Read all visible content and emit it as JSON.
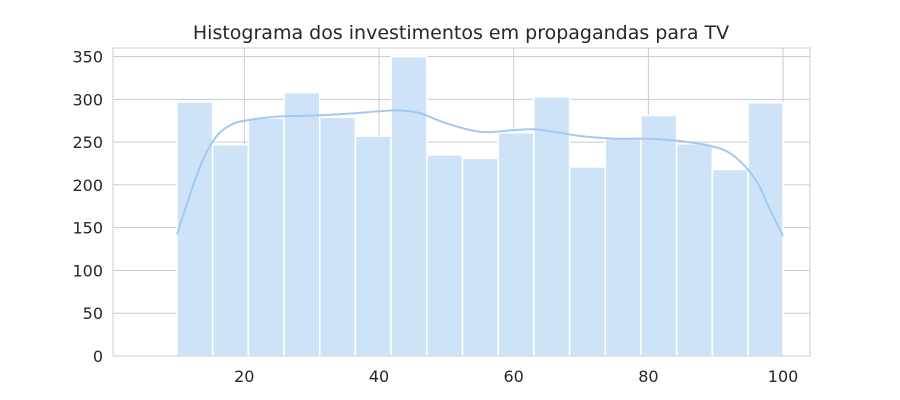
{
  "chart_data": {
    "type": "bar",
    "title": "Histograma dos investimentos em propagandas para TV",
    "xlabel": "",
    "ylabel": "",
    "xlim": [
      0.5,
      104
    ],
    "ylim": [
      0,
      360
    ],
    "x_ticks": [
      20,
      40,
      60,
      80,
      100
    ],
    "y_ticks": [
      0,
      50,
      100,
      150,
      200,
      250,
      300,
      350
    ],
    "grid": true,
    "bar_color": "#cfe3f8",
    "kde_color": "#a1c9f4",
    "bins": [
      {
        "start": 10.0,
        "end": 15.3,
        "count": 297
      },
      {
        "start": 15.3,
        "end": 20.6,
        "count": 247
      },
      {
        "start": 20.6,
        "end": 25.9,
        "count": 278
      },
      {
        "start": 25.9,
        "end": 31.2,
        "count": 308
      },
      {
        "start": 31.2,
        "end": 36.5,
        "count": 279
      },
      {
        "start": 36.5,
        "end": 41.8,
        "count": 257
      },
      {
        "start": 41.8,
        "end": 47.1,
        "count": 350
      },
      {
        "start": 47.1,
        "end": 52.4,
        "count": 235
      },
      {
        "start": 52.4,
        "end": 57.7,
        "count": 231
      },
      {
        "start": 57.7,
        "end": 63.0,
        "count": 261
      },
      {
        "start": 63.0,
        "end": 68.3,
        "count": 303
      },
      {
        "start": 68.3,
        "end": 73.6,
        "count": 221
      },
      {
        "start": 73.6,
        "end": 78.9,
        "count": 254
      },
      {
        "start": 78.9,
        "end": 84.2,
        "count": 281
      },
      {
        "start": 84.2,
        "end": 89.5,
        "count": 248
      },
      {
        "start": 89.5,
        "end": 94.8,
        "count": 218
      },
      {
        "start": 94.8,
        "end": 100.0,
        "count": 296
      }
    ],
    "kde_curve": {
      "x": [
        10,
        12,
        14,
        16,
        18,
        20,
        25,
        30,
        35,
        40,
        43,
        46,
        50,
        55,
        60,
        63,
        66,
        70,
        75,
        80,
        85,
        90,
        93,
        96,
        98,
        100
      ],
      "y": [
        142,
        190,
        232,
        258,
        270,
        275,
        280,
        281,
        283,
        286,
        287,
        284,
        272,
        262,
        264,
        265,
        262,
        257,
        254,
        254,
        251,
        244,
        232,
        205,
        172,
        140
      ]
    }
  }
}
